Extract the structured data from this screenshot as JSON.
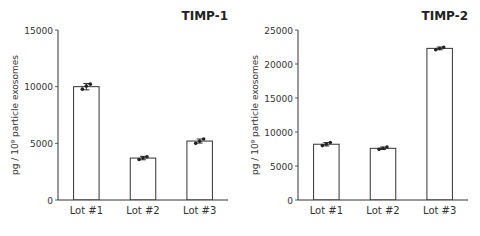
{
  "chart_data": [
    {
      "type": "bar",
      "title": "TIMP-1",
      "categories": [
        "Lot #1",
        "Lot #2",
        "Lot #3"
      ],
      "values": [
        10000,
        3700,
        5200
      ],
      "errors": [
        280,
        150,
        180
      ],
      "points": [
        [
          9780,
          10050,
          10220
        ],
        [
          3580,
          3720,
          3820
        ],
        [
          5000,
          5180,
          5380
        ]
      ],
      "ylim": [
        0,
        15000
      ],
      "yticks": [
        0,
        5000,
        10000,
        15000
      ],
      "ylabel": "pg / 10⁹ particle exosomes",
      "color": "#ffffff"
    },
    {
      "type": "bar",
      "title": "TIMP-2",
      "categories": [
        "Lot #1",
        "Lot #2",
        "Lot #3"
      ],
      "values": [
        8200,
        7600,
        22300
      ],
      "errors": [
        250,
        180,
        200
      ],
      "points": [
        [
          8000,
          8200,
          8450
        ],
        [
          7450,
          7600,
          7800
        ],
        [
          22100,
          22280,
          22450
        ]
      ],
      "ylim": [
        0,
        25000
      ],
      "yticks": [
        0,
        5000,
        10000,
        15000,
        20000,
        25000
      ],
      "ylabel": "pg / 10⁹ particle exosomes",
      "color": "#ffffff"
    }
  ]
}
